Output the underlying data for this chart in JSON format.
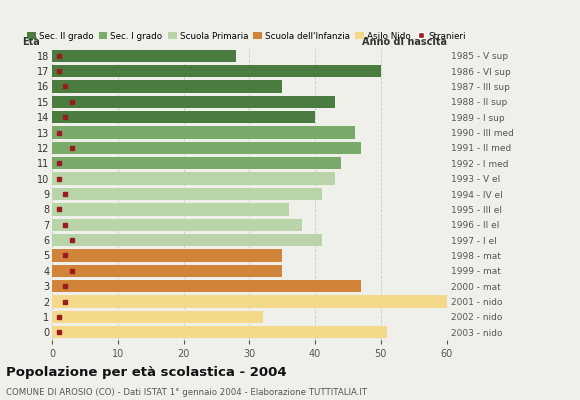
{
  "ages": [
    18,
    17,
    16,
    15,
    14,
    13,
    12,
    11,
    10,
    9,
    8,
    7,
    6,
    5,
    4,
    3,
    2,
    1,
    0
  ],
  "years": [
    "1985 - V sup",
    "1986 - VI sup",
    "1987 - III sup",
    "1988 - II sup",
    "1989 - I sup",
    "1990 - III med",
    "1991 - II med",
    "1992 - I med",
    "1993 - V el",
    "1994 - IV el",
    "1995 - III el",
    "1996 - II el",
    "1997 - I el",
    "1998 - mat",
    "1999 - mat",
    "2000 - mat",
    "2001 - nido",
    "2002 - nido",
    "2003 - nido"
  ],
  "bar_values": [
    28,
    50,
    35,
    43,
    40,
    46,
    47,
    44,
    43,
    41,
    36,
    38,
    41,
    35,
    35,
    47,
    60,
    32,
    51
  ],
  "bar_colors": [
    "#4a7c40",
    "#4a7c40",
    "#4a7c40",
    "#4a7c40",
    "#4a7c40",
    "#7aaa6a",
    "#7aaa6a",
    "#7aaa6a",
    "#b8d4a8",
    "#b8d4a8",
    "#b8d4a8",
    "#b8d4a8",
    "#b8d4a8",
    "#d2833a",
    "#d2833a",
    "#d2833a",
    "#f5d98a",
    "#f5d98a",
    "#f5d98a"
  ],
  "stranieri_values": [
    1,
    1,
    2,
    3,
    2,
    1,
    3,
    1,
    1,
    2,
    1,
    2,
    3,
    2,
    3,
    2,
    2,
    1,
    1
  ],
  "stranieri_color": "#9b1c1c",
  "legend_labels": [
    "Sec. II grado",
    "Sec. I grado",
    "Scuola Primaria",
    "Scuola dell'Infanzia",
    "Asilo Nido",
    "Stranieri"
  ],
  "legend_colors": [
    "#4a7c40",
    "#7aaa6a",
    "#b8d4a8",
    "#d2833a",
    "#f5d98a",
    "#9b1c1c"
  ],
  "title": "Popolazione per età scolastica - 2004",
  "subtitle": "COMUNE DI AROSIO (CO) - Dati ISTAT 1° gennaio 2004 - Elaborazione TUTTITALIA.IT",
  "xlabel_eta": "Età",
  "xlabel_anno": "Anno di nascita",
  "xlim": [
    0,
    60
  ],
  "background_color": "#f0f0eb",
  "grid_color": "#cccccc"
}
